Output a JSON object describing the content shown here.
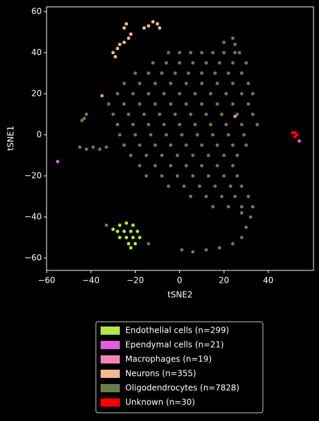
{
  "chart_data": {
    "type": "scatter",
    "x_label": "tSNE2",
    "y_label": "tSNE1",
    "xlim": [
      -60,
      60.4
    ],
    "ylim": [
      -66,
      62.3
    ],
    "xticks": [
      {
        "value": -60,
        "label": "−60"
      },
      {
        "value": -40,
        "label": "−40"
      },
      {
        "value": -20,
        "label": "−20"
      },
      0,
      20,
      40
    ],
    "yticks": [
      {
        "value": -60,
        "label": "−60"
      },
      {
        "value": -40,
        "label": "−40"
      },
      {
        "value": -20,
        "label": "−20"
      },
      0,
      20,
      40,
      60
    ],
    "legend": "lower-center-outside",
    "series": [
      {
        "name": "Endothelial cells (n=299)",
        "color": "#b2e64f",
        "x": [
          -27,
          -24,
          -21,
          -28,
          -25,
          -22,
          -19,
          -27,
          -24,
          -21,
          -18,
          -23,
          -20,
          -22,
          -30
        ],
        "values": [
          -44,
          -43,
          -44,
          -47,
          -47,
          -47,
          -47,
          -50,
          -50,
          -50,
          -50,
          -53,
          -53,
          -55,
          -46
        ]
      },
      {
        "name": "Ependymal cells (n=21)",
        "color": "#e45ce6",
        "x": [
          -55,
          54
        ],
        "values": [
          -13,
          -3
        ]
      },
      {
        "name": "Macrophages (n=19)",
        "color": "#ee86b9",
        "x": [
          -35,
          25
        ],
        "values": [
          19,
          9
        ]
      },
      {
        "name": "Neurons (n=355)",
        "color": "#f5b78e",
        "x": [
          -30,
          -28,
          -27,
          -25,
          -23,
          -22,
          -25,
          -24,
          -14,
          -12,
          -10,
          -9,
          -16,
          -29
        ],
        "values": [
          40,
          42,
          44,
          45,
          47,
          49,
          52,
          54,
          53,
          55,
          54,
          52,
          52,
          38
        ]
      },
      {
        "name": "Oligodendrocytes (n=7828)",
        "color": "#6b7b4c",
        "x": [
          -5,
          0,
          5,
          10,
          15,
          20,
          25,
          -12,
          -6,
          0,
          6,
          12,
          18,
          24,
          30,
          -20,
          -14,
          -8,
          -2,
          4,
          10,
          16,
          22,
          28,
          -25,
          -18,
          -11,
          -4,
          3,
          10,
          17,
          24,
          31,
          -28,
          -21,
          -14,
          -7,
          0,
          7,
          14,
          21,
          28,
          33,
          -32,
          -25,
          -18,
          -11,
          -4,
          3,
          10,
          17,
          24,
          31,
          -30,
          -23,
          -16,
          -9,
          -2,
          5,
          12,
          19,
          26,
          33,
          -28,
          -21,
          -14,
          -7,
          0,
          7,
          14,
          21,
          28,
          35,
          -27,
          -20,
          -13,
          -6,
          1,
          8,
          15,
          22,
          29,
          -25,
          -18,
          -11,
          -4,
          3,
          10,
          17,
          24,
          30,
          -22,
          -15,
          -8,
          -1,
          6,
          13,
          20,
          26,
          -18,
          -11,
          -4,
          3,
          10,
          17,
          24,
          -15,
          -8,
          -1,
          6,
          13,
          20,
          26,
          -5,
          2,
          9,
          16,
          23,
          28,
          5,
          12,
          19,
          25,
          31,
          15,
          22,
          28,
          33,
          32,
          30,
          28,
          24,
          18,
          12,
          6,
          1,
          28,
          33,
          -45,
          -42,
          -39,
          -36,
          -33,
          -43,
          -42,
          -44,
          -14,
          -33,
          20,
          25,
          27,
          24
        ],
        "values": [
          40,
          40,
          40,
          40,
          40,
          40,
          40,
          35,
          35,
          35,
          35,
          35,
          35,
          35,
          35,
          30,
          30,
          30,
          30,
          30,
          30,
          30,
          30,
          30,
          25,
          25,
          25,
          25,
          25,
          25,
          25,
          25,
          25,
          20,
          20,
          20,
          20,
          20,
          20,
          20,
          20,
          20,
          20,
          15,
          15,
          15,
          15,
          15,
          15,
          15,
          15,
          15,
          15,
          10,
          10,
          10,
          10,
          10,
          10,
          10,
          10,
          10,
          10,
          5,
          5,
          5,
          5,
          5,
          5,
          5,
          5,
          5,
          5,
          0,
          0,
          0,
          0,
          0,
          0,
          0,
          0,
          0,
          -5,
          -5,
          -5,
          -5,
          -5,
          -5,
          -5,
          -5,
          -5,
          -10,
          -10,
          -10,
          -10,
          -10,
          -10,
          -10,
          -10,
          -15,
          -15,
          -15,
          -15,
          -15,
          -15,
          -15,
          -20,
          -20,
          -20,
          -20,
          -20,
          -20,
          -20,
          -25,
          -25,
          -25,
          -25,
          -25,
          -25,
          -30,
          -30,
          -30,
          -30,
          -30,
          -35,
          -35,
          -35,
          -35,
          -40,
          -45,
          -50,
          -53,
          -55,
          -56,
          -57,
          -56,
          -38,
          -35,
          -6,
          -7,
          -6,
          -7,
          -6,
          8,
          10,
          7,
          -53,
          -44,
          45,
          44,
          40,
          47
        ]
      },
      {
        "name": "Unknown (n=30)",
        "color": "#ff0000",
        "x": [
          51,
          52,
          53,
          52
        ],
        "values": [
          1,
          -1,
          0,
          1
        ]
      }
    ]
  }
}
